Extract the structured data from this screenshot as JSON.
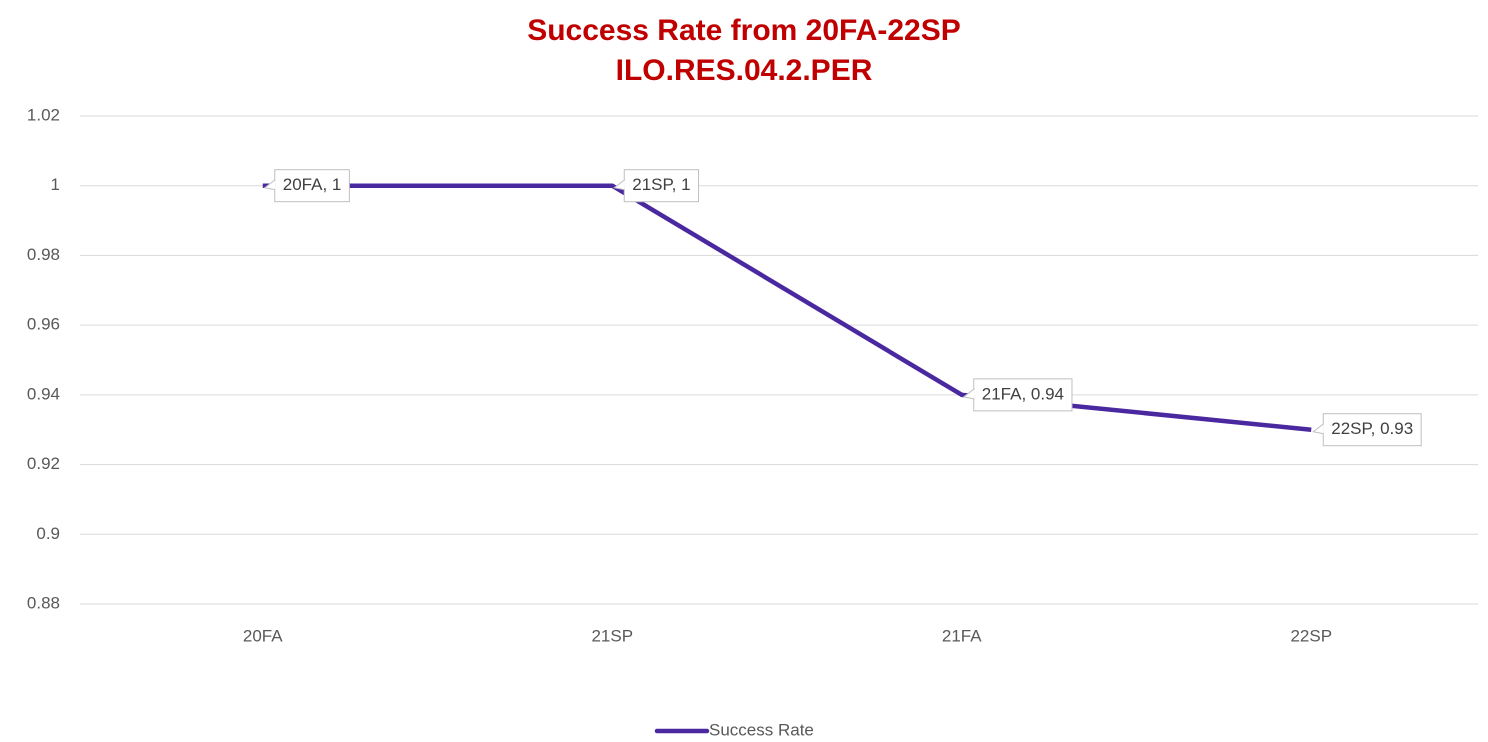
{
  "chart_data": {
    "type": "line",
    "title": "Success Rate from 20FA-22SP",
    "subtitle": "ILO.RES.04.2.PER",
    "categories": [
      "20FA",
      "21SP",
      "21FA",
      "22SP"
    ],
    "series": [
      {
        "name": "Success Rate",
        "color": "#4a28a0",
        "values": [
          1,
          1,
          0.94,
          0.93
        ],
        "value_labels": [
          "20FA, 1",
          "21SP, 1",
          "21FA, 0.94",
          "22SP, 0.93"
        ]
      }
    ],
    "ylim": [
      0.88,
      1.02
    ],
    "yticks": [
      0.88,
      0.9,
      0.92,
      0.94,
      0.96,
      0.98,
      1,
      1.02
    ],
    "grid": true,
    "legend": "bottom"
  }
}
